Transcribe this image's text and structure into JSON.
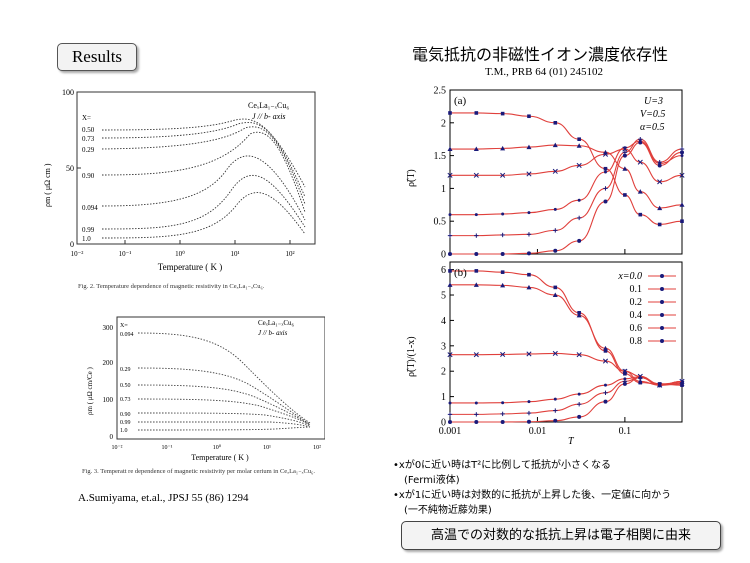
{
  "results_label": "Results",
  "right_title": "電気抵抗の非磁性イオン濃度依存性",
  "right_citation": "T.M., PRB 64 (01) 245102",
  "left_citation": "A.Sumiyama, et.al., JPSJ 55 (86) 1294",
  "fig2": {
    "compound": "CeₓLa₁₋ₓCu₆",
    "field": "J // b- axis",
    "x_header": "X=",
    "ylabel": "ρm ( μΩ cm )",
    "xlabel": "Temperature ( K )",
    "yticks": [
      "100",
      "50",
      "0"
    ],
    "xticks": [
      "10⁻²",
      "10⁻¹",
      "10⁰",
      "10¹",
      "10²"
    ],
    "curve_labels": [
      "0.50",
      "0.73",
      "0.29",
      "0.90",
      "0.094",
      "0.99",
      "1.0"
    ],
    "caption": "Fig. 2.  Temperature dependence of magnetic resistivity in CeₓLa₁₋ₓCu₆."
  },
  "fig3": {
    "compound": "CeₓLa₁₋ₓCu₆",
    "field": "J // b- axis",
    "x_header": "X=",
    "ylabel": "ρm ( μΩ cm/Ce )",
    "xlabel": "Temperature ( K )",
    "yticks": [
      "300",
      "200",
      "100",
      "0"
    ],
    "xticks": [
      "10⁻²",
      "10⁻¹",
      "10⁰",
      "10¹",
      "10²"
    ],
    "curve_labels": [
      "0.094",
      "0.29",
      "0.50",
      "0.73",
      "0.90",
      "0.99",
      "1.0"
    ],
    "caption": "Fig. 3.  Temperatt re dependence of magnetic resistivity per molar cerium in CeₓLa₁₋ₓCu₆."
  },
  "chart_data": [
    {
      "type": "line",
      "panel": "(a)",
      "params": [
        "U=3",
        "V=0.5",
        "α=0.5"
      ],
      "ylabel": "ρ̃(T)",
      "yticks": [
        "0",
        "0.5",
        "1",
        "1.5",
        "2",
        "2.5"
      ],
      "ylim": [
        0,
        2.5
      ],
      "x_scale": "log",
      "xlim": [
        0.001,
        0.45
      ],
      "x": [
        0.001,
        0.002,
        0.004,
        0.008,
        0.016,
        0.03,
        0.06,
        0.1,
        0.15,
        0.25,
        0.45
      ],
      "series": [
        {
          "name": "0.0",
          "values": [
            0.0,
            0.0,
            0.0,
            0.01,
            0.05,
            0.2,
            0.8,
            1.5,
            1.7,
            1.35,
            1.55
          ]
        },
        {
          "name": "0.1",
          "values": [
            0.28,
            0.28,
            0.29,
            0.3,
            0.36,
            0.55,
            1.0,
            1.55,
            1.75,
            1.4,
            1.6
          ]
        },
        {
          "name": "0.2",
          "values": [
            0.6,
            0.6,
            0.61,
            0.63,
            0.68,
            0.82,
            1.25,
            1.62,
            1.72,
            1.38,
            1.5
          ]
        },
        {
          "name": "0.4",
          "values": [
            1.2,
            1.2,
            1.2,
            1.22,
            1.26,
            1.35,
            1.52,
            1.6,
            1.4,
            1.1,
            1.2
          ]
        },
        {
          "name": "0.6",
          "values": [
            1.6,
            1.6,
            1.61,
            1.63,
            1.66,
            1.65,
            1.55,
            1.3,
            0.95,
            0.7,
            0.75
          ]
        },
        {
          "name": "0.8",
          "values": [
            2.15,
            2.15,
            2.14,
            2.1,
            2.0,
            1.75,
            1.3,
            0.9,
            0.6,
            0.45,
            0.5
          ]
        }
      ]
    },
    {
      "type": "line",
      "panel": "(b)",
      "ylabel": "ρ̃(T)/(1-x)",
      "xlabel": "T",
      "xticks": [
        "0.001",
        "0.01",
        "0.1"
      ],
      "yticks": [
        "0",
        "1",
        "2",
        "3",
        "4",
        "5",
        "6"
      ],
      "ylim": [
        0,
        6.3
      ],
      "x_scale": "log",
      "xlim": [
        0.001,
        0.45
      ],
      "legend": [
        "x=0.0",
        "0.1",
        "0.2",
        "0.4",
        "0.6",
        "0.8"
      ],
      "x": [
        0.001,
        0.002,
        0.004,
        0.008,
        0.016,
        0.03,
        0.06,
        0.1,
        0.15,
        0.25,
        0.45
      ],
      "series": [
        {
          "name": "x=0.0",
          "values": [
            0.0,
            0.0,
            0.0,
            0.01,
            0.05,
            0.2,
            0.8,
            1.5,
            1.75,
            1.45,
            1.55
          ]
        },
        {
          "name": "0.1",
          "values": [
            0.3,
            0.3,
            0.32,
            0.35,
            0.45,
            0.7,
            1.15,
            1.6,
            1.75,
            1.45,
            1.6
          ]
        },
        {
          "name": "0.2",
          "values": [
            0.75,
            0.75,
            0.76,
            0.8,
            0.9,
            1.1,
            1.45,
            1.7,
            1.78,
            1.5,
            1.55
          ]
        },
        {
          "name": "0.4",
          "values": [
            2.65,
            2.65,
            2.66,
            2.68,
            2.7,
            2.65,
            2.4,
            2.0,
            1.8,
            1.45,
            1.6
          ]
        },
        {
          "name": "0.6",
          "values": [
            5.4,
            5.4,
            5.38,
            5.3,
            5.0,
            4.2,
            2.9,
            2.0,
            1.6,
            1.45,
            1.5
          ]
        },
        {
          "name": "0.8",
          "values": [
            5.95,
            5.95,
            5.9,
            5.8,
            5.3,
            4.3,
            2.8,
            1.9,
            1.55,
            1.5,
            1.45
          ]
        }
      ],
      "colors": {
        "line": "#e0403c",
        "marker": "#1a1a7a"
      }
    }
  ],
  "bullets": {
    "b1_main": "•xが0に近い時はT²に比例して抵抗が小さくなる",
    "b1_sub": "(Fermi液体)",
    "b2_main": "•xが1に近い時は対数的に抵抗が上昇した後、一定値に向かう",
    "b2_sub": "(一不純物近藤効果)"
  },
  "conclusion": "高温での対数的な抵抗上昇は電子相関に由来"
}
